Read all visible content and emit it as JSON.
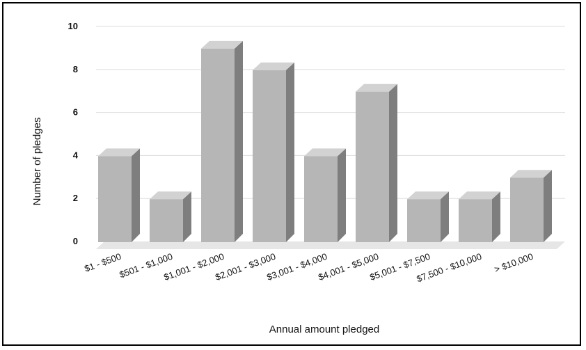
{
  "chart_data": {
    "type": "bar",
    "title": "",
    "xlabel": "Annual amount pledged",
    "ylabel": "Number of pledges",
    "ylim": [
      0,
      10
    ],
    "yticks": [
      "0",
      "2",
      "4",
      "6",
      "8",
      "10"
    ],
    "grid": true,
    "style": "3d",
    "categories": [
      "$1 - $500",
      "$501 - $1,000",
      "$1,001 - $2,000",
      "$2,001 - $3,000",
      "$3,001 - $4,000",
      "$4,001 - $5,000",
      "$5,001 - $7,500",
      "$7,500 - $10,000",
      "> $10,000"
    ],
    "values": [
      4,
      2,
      9,
      8,
      4,
      7,
      2,
      2,
      3
    ],
    "colors": {
      "front": "#b6b6b6",
      "top": "#d2d2d2",
      "side": "#7e7e7e",
      "floor": "#e6e6e6",
      "grid": "#dddddd"
    }
  }
}
